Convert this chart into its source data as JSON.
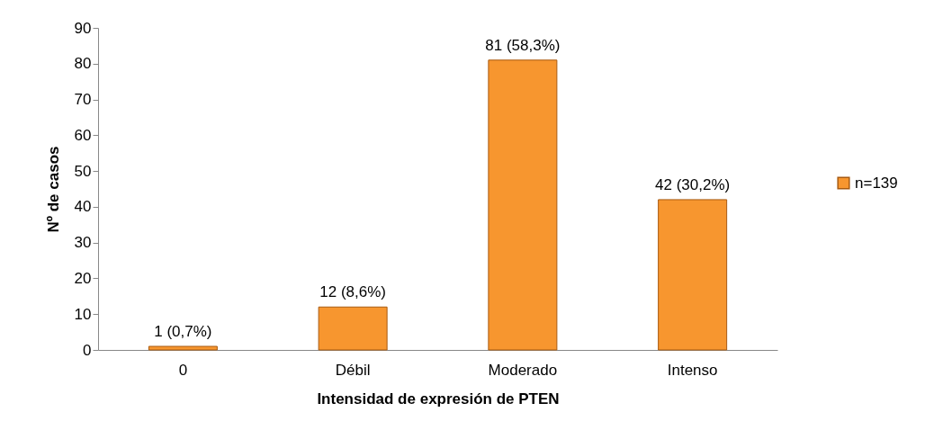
{
  "chart_data": {
    "type": "bar",
    "xlabel": "Intensidad de expresión de PTEN",
    "ylabel": "Nº de casos",
    "categories": [
      "0",
      "Débil",
      "Moderado",
      "Intenso"
    ],
    "series": [
      {
        "name": "n=139",
        "color": "#f7962f",
        "values": [
          1,
          12,
          81,
          42
        ],
        "value_labels": [
          "1 (0,7%)",
          "12 (8,6%)",
          "81 (58,3%)",
          "42 (30,2%)"
        ]
      }
    ],
    "ylim": [
      0,
      90
    ],
    "yticks": [
      0,
      10,
      20,
      30,
      40,
      50,
      60,
      70,
      80,
      90
    ],
    "grid": false,
    "legend": "right"
  }
}
